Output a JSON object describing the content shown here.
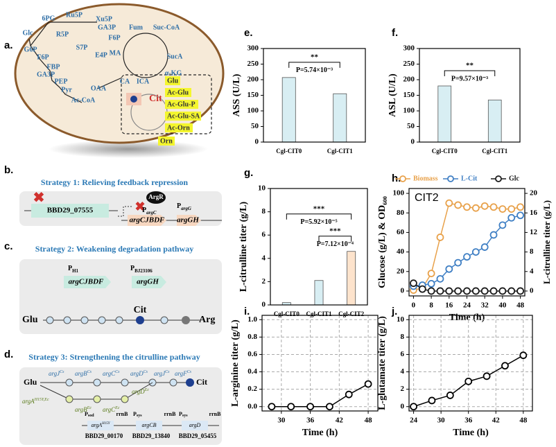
{
  "panel_a": {
    "label": "a.",
    "metabolites": [
      "6PG",
      "Ru5P",
      "Xu5P",
      "GA3P",
      "Glc",
      "R5P",
      "F6P",
      "S7P",
      "E4P",
      "G6P",
      "F6P",
      "FBP",
      "GA3P",
      "PEP",
      "Pyr",
      "Ac-CoA",
      "OAA",
      "Fum",
      "Suc-CoA",
      "MA",
      "SucA",
      "CA",
      "ICA",
      "α-KG"
    ],
    "intermediates": [
      "Glu",
      "Ac-Glu",
      "Ac-Glu-P",
      "Ac-Glu-SA",
      "Ac-Orn",
      "Orn"
    ],
    "target": "Cit"
  },
  "panel_b": {
    "label": "b.",
    "title": "Strategy 1: Relieving feedback repression",
    "deleted_gene": "BBD29_07555",
    "regulator": "ArgR",
    "promoter_1": {
      "main": "P",
      "sub": "argC"
    },
    "operon_1": "argCJBDF",
    "promoter_2": {
      "main": "P",
      "sub": "argG"
    },
    "operon_2": "argGH"
  },
  "panel_c": {
    "label": "c.",
    "title": "Strategy 2: Weakening degradation pathway",
    "promoter_1": {
      "main": "P",
      "sub": "H1"
    },
    "operon_1": "argCJBDF",
    "promoter_2": {
      "main": "P",
      "sub": "BJ23106"
    },
    "operon_2": "argGH",
    "start": "Glu",
    "product": "Cit",
    "end": "Arg"
  },
  "panel_d": {
    "label": "d.",
    "title": "Strategy 3: Strengthening the citrulline pathway",
    "start": "Glu",
    "product": "Cit",
    "native_genes": [
      {
        "name": "argJ",
        "sup": "Cs"
      },
      {
        "name": "argB",
        "sup": "Cs"
      },
      {
        "name": "argC",
        "sup": "Cs"
      },
      {
        "name": "argD",
        "sup": "Cs"
      },
      {
        "name": "argJ",
        "sup": "Cs"
      },
      {
        "name": "argF",
        "sup": "Cs"
      }
    ],
    "heterologous_genes": [
      {
        "name": "argA",
        "sup": "H15Y,Ec"
      },
      {
        "name": "argB",
        "sup": "Ec"
      },
      {
        "name": "argC",
        "sup": "Ec"
      },
      {
        "name": "argD",
        "sup": "Ec"
      }
    ],
    "cassettes": [
      {
        "promoter": {
          "main": "P",
          "sub": "sod"
        },
        "gene": "argA",
        "gene_sup": "H15Y",
        "terminator": "rrnB",
        "locus": "BBD29_00170"
      },
      {
        "promoter": {
          "main": "P",
          "sub": "sys"
        },
        "gene": "argCB",
        "terminator": "rrnB",
        "locus": "BBD29_13840"
      },
      {
        "promoter": {
          "main": "P",
          "sub": "sys"
        },
        "gene": "argD",
        "terminator": "rrnB",
        "locus": "BBD29_05455"
      }
    ]
  },
  "chart_data": [
    {
      "type": "bar",
      "panel": "e.",
      "y_label": "ASS (U/L)",
      "categories": [
        "Cgl-CIT0",
        "Cgl-CIT1"
      ],
      "values": [
        207,
        155
      ],
      "colors": [
        "#d8eef3",
        "#d8eef3"
      ],
      "ylim": [
        0,
        300
      ],
      "yticks": [
        0,
        50,
        100,
        150,
        200,
        250,
        300
      ],
      "annotations": [
        "**",
        "P=5.74×10⁻³"
      ]
    },
    {
      "type": "bar",
      "panel": "f.",
      "y_label": "ASL (U/L)",
      "categories": [
        "Cgl-CIT0",
        "Cgl-CIT1"
      ],
      "values": [
        180,
        135
      ],
      "colors": [
        "#d8eef3",
        "#d8eef3"
      ],
      "ylim": [
        0,
        300
      ],
      "yticks": [
        0,
        50,
        100,
        150,
        200,
        250,
        300
      ],
      "annotations": [
        "**",
        "P=9.57×10⁻³"
      ]
    },
    {
      "type": "bar",
      "panel": "g.",
      "y_label": "L-citrulline titer (g/L)",
      "categories": [
        "Cgl-CIT0",
        "Cgl-CIT1",
        "Cgl-CIT2"
      ],
      "values": [
        0.2,
        2.1,
        4.6
      ],
      "colors": [
        "#d8eef3",
        "#d8eef3",
        "#fde3cc"
      ],
      "ylim": [
        0,
        10
      ],
      "yticks": [
        0,
        2,
        4,
        6,
        8,
        10
      ],
      "annotations": [
        "***",
        "P=5.92×10⁻⁵",
        "***",
        "P=7.12×10⁻⁴"
      ]
    },
    {
      "type": "line",
      "panel": "h.",
      "annotation": "CIT2",
      "x_label": "Time (h)",
      "y_label": "Glucose (g/L) & OD₆₀₀",
      "y2_label": "L-citrulline titer (g/L)",
      "x": [
        0,
        4,
        8,
        12,
        16,
        20,
        24,
        28,
        32,
        36,
        40,
        44,
        48
      ],
      "xlim": [
        -2,
        50
      ],
      "xticks": [
        0,
        8,
        16,
        24,
        32,
        40,
        48
      ],
      "ylim": [
        -5,
        105
      ],
      "yticks": [
        0,
        20,
        40,
        60,
        80,
        100
      ],
      "y2lim": [
        -1,
        21
      ],
      "y2ticks": [
        0,
        4,
        8,
        12,
        16,
        20
      ],
      "legend": "top",
      "grid": false,
      "series": [
        {
          "name": "Biomass",
          "color": "#e8a14a",
          "values": [
            1,
            3,
            18,
            55,
            90,
            88,
            86,
            85,
            87,
            86,
            84,
            84,
            86
          ]
        },
        {
          "name": "L-Cit",
          "color": "#3f7fc4",
          "axis": "y2",
          "values": [
            1,
            1.2,
            1.5,
            2.5,
            4.5,
            5.8,
            7,
            8,
            9,
            11.5,
            13.5,
            15,
            15.5
          ]
        },
        {
          "name": "Glc",
          "color": "#1a1a1a",
          "values": [
            8,
            2,
            0,
            0,
            0,
            0,
            0,
            0,
            0,
            0,
            0,
            0,
            0
          ]
        }
      ]
    },
    {
      "type": "line",
      "panel": "i.",
      "x_label": "Time (h)",
      "y_label": "L-arginine titer (g/L)",
      "x": [
        28,
        32,
        36,
        40,
        44,
        48
      ],
      "xlim": [
        26,
        50
      ],
      "xticks": [
        30,
        36,
        42,
        48
      ],
      "ylim": [
        -0.05,
        1.05
      ],
      "yticks": [
        {
          "value": 0,
          "label": "0.0"
        },
        {
          "value": 0.2,
          "label": "0.2"
        },
        {
          "value": 0.4,
          "label": "0.4"
        },
        {
          "value": 0.6,
          "label": "0.6"
        },
        {
          "value": 0.8,
          "label": "0.8"
        },
        {
          "value": 1,
          "label": "1.0"
        }
      ],
      "grid": true,
      "series": [
        {
          "color": "#000000",
          "values": [
            0,
            0,
            0,
            0,
            0.14,
            0.26
          ]
        }
      ]
    },
    {
      "type": "line",
      "panel": "j.",
      "x_label": "Time (h)",
      "y_label": "L-glutamate titer (g/L)",
      "x": [
        24,
        28,
        32,
        36,
        40,
        44,
        48
      ],
      "xlim": [
        23,
        50
      ],
      "xticks": [
        24,
        30,
        36,
        42,
        48
      ],
      "ylim": [
        -0.5,
        10.5
      ],
      "yticks": [
        0,
        2,
        4,
        6,
        8,
        10
      ],
      "grid": true,
      "series": [
        {
          "color": "#000000",
          "values": [
            0,
            0.7,
            1.3,
            2.9,
            3.5,
            4.7,
            5.9
          ]
        }
      ]
    }
  ]
}
